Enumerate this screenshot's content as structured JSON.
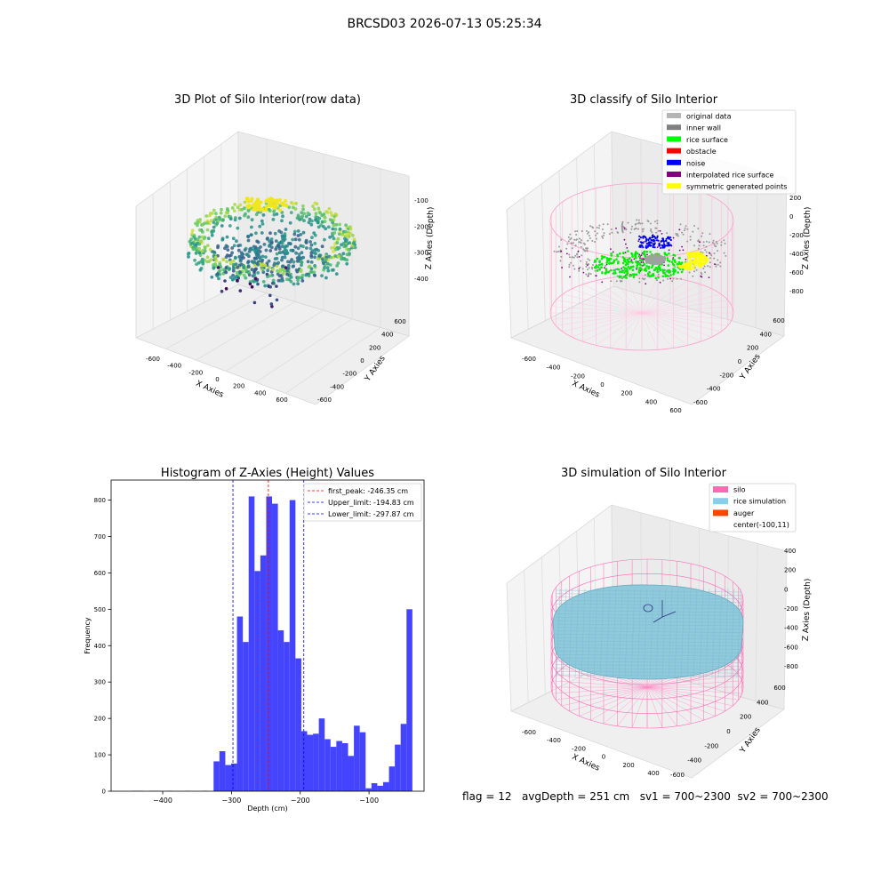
{
  "suptitle": "BRCSD03 2026-07-13 05:25:34",
  "panels": {
    "raw": {
      "title": "3D Plot of Silo Interior(row data)",
      "xlabel": "X Axies",
      "ylabel": "Y Axies",
      "zlabel": "Z Axies (Depth)",
      "x_ticks": [
        "-600",
        "-400",
        "-200",
        "0",
        "200",
        "400",
        "600"
      ],
      "y_ticks": [
        "-600",
        "-400",
        "-200",
        "0",
        "200",
        "400",
        "600"
      ],
      "z_ticks": [
        "-400",
        "-300",
        "-200",
        "-100"
      ]
    },
    "classify": {
      "title": "3D classify of Silo Interior",
      "xlabel": "X Axies",
      "ylabel": "Y Axies",
      "zlabel": "Z Axies (Depth)",
      "x_ticks": [
        "-600",
        "-400",
        "-200",
        "0",
        "200",
        "400",
        "600"
      ],
      "y_ticks": [
        "-600",
        "-400",
        "-200",
        "0",
        "200",
        "400",
        "600"
      ],
      "z_ticks": [
        "-800",
        "-600",
        "-400",
        "-200",
        "0",
        "200"
      ],
      "legend": [
        {
          "label": "original data",
          "color": "#b5b5b5"
        },
        {
          "label": "inner wall",
          "color": "#808080"
        },
        {
          "label": "rice surface",
          "color": "#00ff00"
        },
        {
          "label": "obstacle",
          "color": "#ff0000"
        },
        {
          "label": "noise",
          "color": "#0000ff"
        },
        {
          "label": "interpolated rice surface",
          "color": "#800080"
        },
        {
          "label": "symmetric generated points",
          "color": "#ffff00"
        }
      ]
    },
    "simulation": {
      "title": "3D simulation of Silo Interior",
      "xlabel": "X Axies",
      "ylabel": "Y Axies",
      "zlabel": "Z Axies (Depth)",
      "x_ticks": [
        "-600",
        "-400",
        "-200",
        "0",
        "200",
        "400"
      ],
      "y_ticks": [
        "-600",
        "-400",
        "-200",
        "0",
        "200",
        "400",
        "600"
      ],
      "z_ticks": [
        "-800",
        "-600",
        "-400",
        "-200",
        "0",
        "200",
        "400"
      ],
      "legend": [
        {
          "label": "silo",
          "color": "#ff69b4"
        },
        {
          "label": "rice simulation",
          "color": "#87ceeb"
        },
        {
          "label": "auger",
          "color": "#ff4500"
        },
        {
          "label": "center(-100,11)",
          "color": ""
        }
      ]
    }
  },
  "chart_data": [
    {
      "type": "scatter",
      "title": "3D Plot of Silo Interior(row data)",
      "xlabel": "X Axies",
      "ylabel": "Y Axies",
      "zlabel": "Z Axies (Depth)",
      "zlim": [
        -450,
        -50
      ],
      "colormap": "viridis"
    },
    {
      "type": "scatter",
      "title": "3D classify of Silo Interior",
      "xlabel": "X Axies",
      "ylabel": "Y Axies",
      "zlabel": "Z Axies (Depth)",
      "zlim": [
        -900,
        300
      ]
    },
    {
      "type": "bar",
      "title": "Histogram of Z-Axies (Height) Values",
      "xlabel": "Depth (cm)",
      "ylabel": "Frequency",
      "xlim": [
        -475,
        -20
      ],
      "ylim": [
        0,
        855
      ],
      "x_ticks": [
        -400,
        -300,
        -200,
        -100
      ],
      "y_ticks": [
        0,
        100,
        200,
        300,
        400,
        500,
        600,
        700,
        800
      ],
      "bar_color": "#4444ff",
      "bin_start": -445,
      "bin_width": 8.5,
      "values": [
        1,
        1,
        0,
        1,
        1,
        0,
        1,
        0,
        0,
        1,
        0,
        0,
        1,
        0,
        82,
        110,
        72,
        76,
        480,
        410,
        810,
        605,
        648,
        810,
        790,
        442,
        410,
        800,
        365,
        165,
        155,
        158,
        200,
        143,
        122,
        138,
        132,
        97,
        180,
        162,
        8,
        22,
        15,
        25,
        68,
        128,
        185,
        500
      ],
      "lines": [
        {
          "label": "first_peak: -246.35 cm",
          "x": -246.35,
          "color": "#ff0000"
        },
        {
          "label": "Upper_limit: -194.83 cm",
          "x": -194.83,
          "color": "#0000ff"
        },
        {
          "label": "Lower_limit: -297.87 cm",
          "x": -297.87,
          "color": "#0000ff"
        }
      ]
    },
    {
      "type": "area",
      "title": "3D simulation of Silo Interior",
      "xlabel": "X Axies",
      "ylabel": "Y Axies",
      "zlabel": "Z Axies (Depth)",
      "zlim": [
        -900,
        450
      ],
      "center": [
        -100,
        11
      ]
    }
  ],
  "footer": {
    "flag": "flag = 12",
    "avgDepth": "avgDepth = 251 cm",
    "sv1": "sv1 = 700~2300",
    "sv2": "sv2 = 700~2300"
  }
}
